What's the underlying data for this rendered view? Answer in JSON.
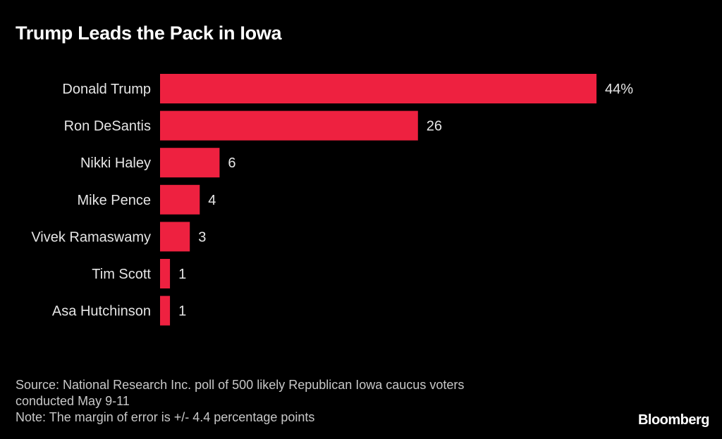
{
  "chart_data": {
    "type": "bar",
    "orientation": "horizontal",
    "title": "Trump Leads the Pack in Iowa",
    "categories": [
      "Donald Trump",
      "Ron DeSantis",
      "Nikki Haley",
      "Mike Pence",
      "Vivek Ramaswamy",
      "Tim Scott",
      "Asa Hutchinson"
    ],
    "values": [
      44,
      26,
      6,
      4,
      3,
      1,
      1
    ],
    "value_labels": [
      "44%",
      "26",
      "6",
      "4",
      "3",
      "1",
      "1"
    ],
    "unit": "%",
    "xlabel": "",
    "ylabel": "",
    "xlim": [
      0,
      44
    ],
    "grid": false,
    "legend": "none",
    "bar_color": "#ee2140"
  },
  "footer": {
    "source_lines": [
      "Source: National Research Inc. poll of 500 likely Republican Iowa caucus voters",
      "conducted May 9-11",
      "Note: The margin of error is +/- 4.4 percentage points"
    ],
    "brand": "Bloomberg"
  },
  "colors": {
    "background": "#000000",
    "bar": "#ee2140",
    "text": "#ffffff"
  }
}
